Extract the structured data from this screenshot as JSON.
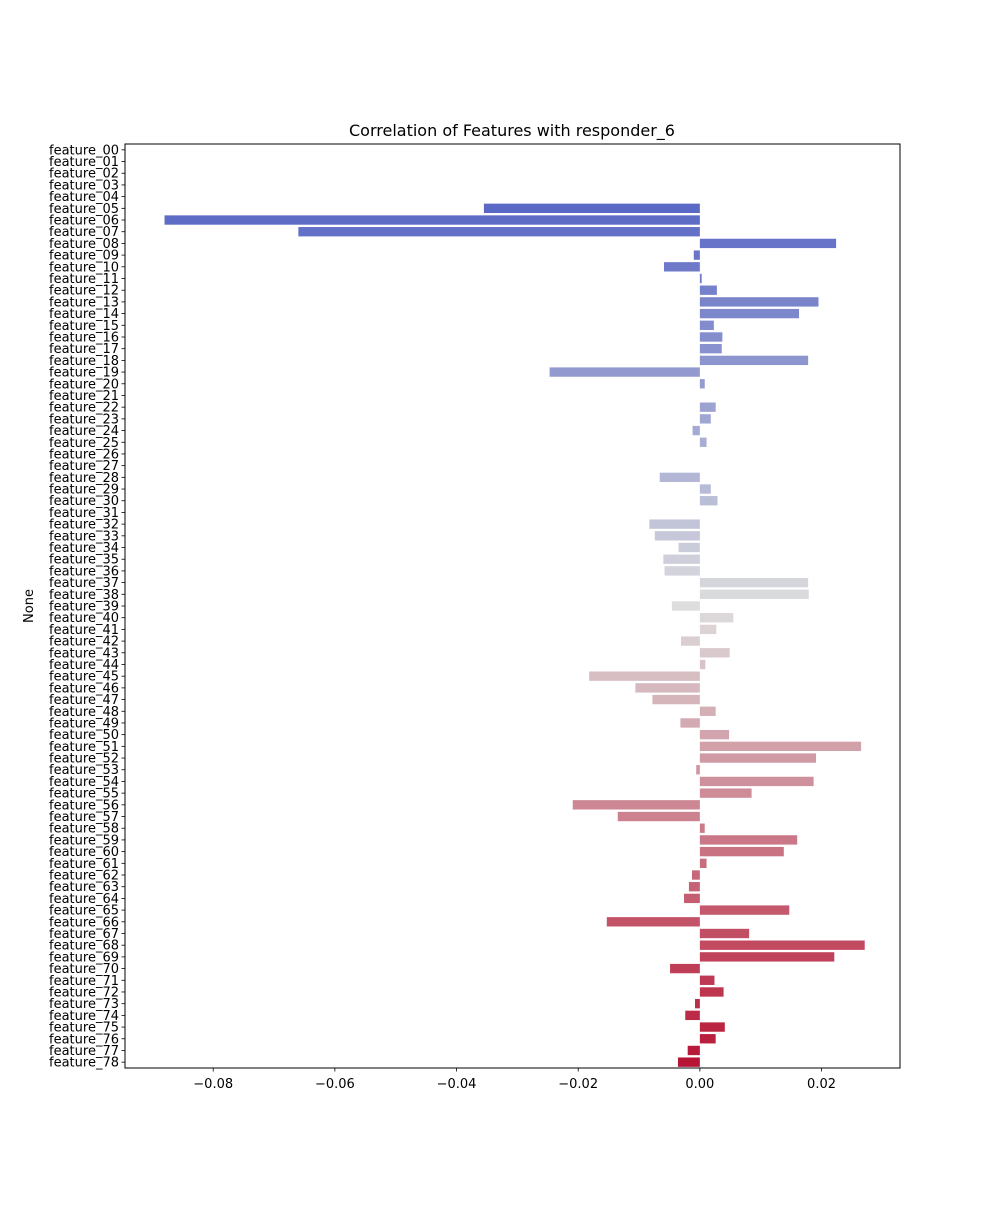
{
  "chart_data": {
    "type": "bar",
    "orientation": "horizontal",
    "title": "Correlation of Features with responder_6",
    "xlabel": "",
    "ylabel": "None",
    "xlim": [
      -0.0945,
      0.0329
    ],
    "xticks": [
      -0.08,
      -0.06,
      -0.04,
      -0.02,
      0.0,
      0.02
    ],
    "xtick_labels": [
      "−0.08",
      "−0.06",
      "−0.04",
      "−0.02",
      "0.00",
      "0.02"
    ],
    "grid": false,
    "legend": "none",
    "palette": "coolwarm",
    "color_start": "#3b4cc0",
    "color_mid": "#dddddd",
    "color_end": "#b40426",
    "categories": [
      "feature_00",
      "feature_01",
      "feature_02",
      "feature_03",
      "feature_04",
      "feature_05",
      "feature_06",
      "feature_07",
      "feature_08",
      "feature_09",
      "feature_10",
      "feature_11",
      "feature_12",
      "feature_13",
      "feature_14",
      "feature_15",
      "feature_16",
      "feature_17",
      "feature_18",
      "feature_19",
      "feature_20",
      "feature_21",
      "feature_22",
      "feature_23",
      "feature_24",
      "feature_25",
      "feature_26",
      "feature_27",
      "feature_28",
      "feature_29",
      "feature_30",
      "feature_31",
      "feature_32",
      "feature_33",
      "feature_34",
      "feature_35",
      "feature_36",
      "feature_37",
      "feature_38",
      "feature_39",
      "feature_40",
      "feature_41",
      "feature_42",
      "feature_43",
      "feature_44",
      "feature_45",
      "feature_46",
      "feature_47",
      "feature_48",
      "feature_49",
      "feature_50",
      "feature_51",
      "feature_52",
      "feature_53",
      "feature_54",
      "feature_55",
      "feature_56",
      "feature_57",
      "feature_58",
      "feature_59",
      "feature_60",
      "feature_61",
      "feature_62",
      "feature_63",
      "feature_64",
      "feature_65",
      "feature_66",
      "feature_67",
      "feature_68",
      "feature_69",
      "feature_70",
      "feature_71",
      "feature_72",
      "feature_73",
      "feature_74",
      "feature_75",
      "feature_76",
      "feature_77",
      "feature_78"
    ],
    "values": [
      0.0,
      0.0,
      0.0,
      0.0,
      0.0,
      -0.0355,
      -0.088,
      -0.066,
      0.0224,
      -0.001,
      -0.0059,
      0.0003,
      0.0028,
      0.0195,
      0.0163,
      0.0023,
      0.0037,
      0.0036,
      0.0178,
      -0.0247,
      0.0008,
      0.0,
      0.0026,
      0.0018,
      -0.0012,
      0.0011,
      0.0,
      0.0,
      -0.0066,
      0.0018,
      0.0029,
      0.0,
      -0.0083,
      -0.0074,
      -0.0035,
      -0.006,
      -0.0058,
      0.0178,
      0.0179,
      -0.0046,
      0.0055,
      0.0027,
      -0.0031,
      0.0049,
      0.0009,
      -0.0182,
      -0.0106,
      -0.0078,
      0.0026,
      -0.0032,
      0.0048,
      0.0265,
      0.0191,
      -0.0006,
      0.0187,
      0.0085,
      -0.0209,
      -0.0135,
      0.0008,
      0.016,
      0.0138,
      0.0011,
      -0.0013,
      -0.0018,
      -0.0026,
      0.0147,
      -0.0153,
      0.0081,
      0.0271,
      0.0221,
      -0.0049,
      0.0024,
      0.0039,
      -0.0008,
      -0.0024,
      0.0041,
      0.0026,
      -0.002,
      -0.0036
    ]
  }
}
